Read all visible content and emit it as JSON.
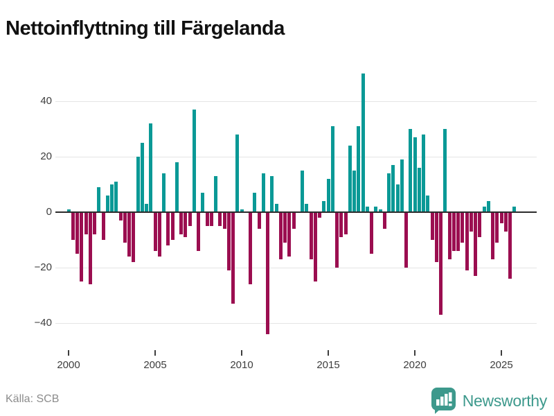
{
  "title": "Nettoinflyttning till Färgelanda",
  "source": "Källa: SCB",
  "brand": {
    "name": "Newsworthy"
  },
  "chart_data": {
    "type": "bar",
    "title": "Nettoinflyttning till Färgelanda",
    "xlabel": "",
    "ylabel": "",
    "frequency": "quarterly",
    "x_start": "2000-Q1",
    "x_end": "2025-Q4",
    "values": [
      1,
      -10,
      -15,
      -25,
      -8,
      -26,
      -8,
      9,
      -10,
      6,
      10,
      11,
      -3,
      -11,
      -16,
      -18,
      20,
      25,
      3,
      32,
      -14,
      -16,
      14,
      -12,
      -10,
      18,
      -8,
      -9,
      -5,
      37,
      -14,
      7,
      -5,
      -5,
      13,
      -5,
      -6,
      -21,
      -33,
      28,
      1,
      0,
      -26,
      7,
      -6,
      14,
      -44,
      13,
      3,
      -17,
      -11,
      -16,
      -6,
      0,
      15,
      3,
      -17,
      -25,
      -2,
      4,
      12,
      31,
      -20,
      -9,
      -8,
      24,
      15,
      31,
      50,
      2,
      -15,
      2,
      1,
      -6,
      14,
      17,
      10,
      19,
      -20,
      30,
      27,
      16,
      28,
      6,
      -10,
      -18,
      -37,
      30,
      -17,
      -14,
      -14,
      -11,
      -21,
      -7,
      -23,
      -9,
      2,
      4,
      -17,
      -11,
      -4,
      -7,
      -24,
      2
    ],
    "x_tick_years": [
      "2000",
      "2005",
      "2010",
      "2015",
      "2020",
      "2025"
    ],
    "y_ticks": [
      40,
      20,
      0,
      -20,
      -40
    ],
    "ylim": [
      -47,
      52
    ],
    "grid": "horizontal",
    "legend": "none",
    "colors": {
      "positive": "#0a9996",
      "negative": "#9b0e50"
    }
  }
}
